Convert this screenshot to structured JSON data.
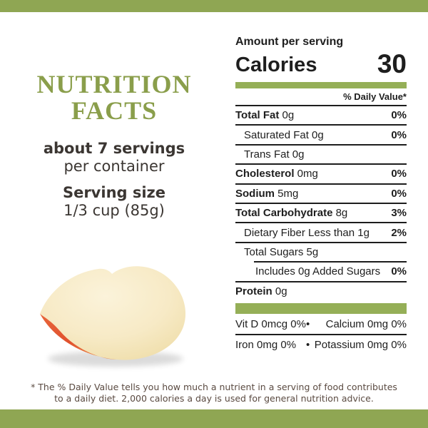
{
  "colors": {
    "page_bar_green": "#8fa653",
    "label_bar_green": "#95af57",
    "title_green": "#8a9e4b",
    "label_text": "#1e1e1e",
    "left_text": "#3b3632",
    "footnote_text": "#5a4a41"
  },
  "left_panel": {
    "title_line1": "NUTRITION",
    "title_line2": "FACTS",
    "servings_bold": "about 7 servings",
    "servings_sub": "per container",
    "serving_size_label": "Serving size",
    "serving_size_value": "1/3 cup (85g)",
    "image": "apple-slice"
  },
  "label": {
    "amount_per_serving": "Amount per serving",
    "calories_label": "Calories",
    "calories_value": "30",
    "daily_value_header": "% Daily Value*",
    "rows": [
      {
        "name": "Total Fat",
        "amount": "0g",
        "dv": "0%",
        "bold": true,
        "indent": 0
      },
      {
        "name": "Saturated Fat",
        "amount": "0g",
        "dv": "0%",
        "bold": false,
        "indent": 1
      },
      {
        "name": "Trans Fat",
        "amount": "0g",
        "dv": "",
        "bold": false,
        "indent": 1
      },
      {
        "name": "Cholesterol",
        "amount": "0mg",
        "dv": "0%",
        "bold": true,
        "indent": 0
      },
      {
        "name": "Sodium",
        "amount": "5mg",
        "dv": "0%",
        "bold": true,
        "indent": 0
      },
      {
        "name": "Total Carbohydrate",
        "amount": "8g",
        "dv": "3%",
        "bold": true,
        "indent": 0
      },
      {
        "name": "Dietary Fiber",
        "amount": "Less than 1g",
        "dv": "2%",
        "bold": false,
        "indent": 1
      },
      {
        "name": "Total Sugars",
        "amount": "5g",
        "dv": "",
        "bold": false,
        "indent": 1
      },
      {
        "name": "Includes 0g Added Sugars",
        "amount": "",
        "dv": "0%",
        "bold": false,
        "indent": 2,
        "rule_indent": true
      },
      {
        "name": "Protein",
        "amount": "0g",
        "dv": "",
        "bold": true,
        "indent": 0
      }
    ],
    "bullet": "•",
    "micronutrients": [
      {
        "left": "Vit D 0mcg 0%",
        "right": "Calcium 0mg 0%"
      },
      {
        "left": "Iron 0mg 0%",
        "right": "Potassium 0mg 0%"
      }
    ]
  },
  "footnote": {
    "line1": "* The % Daily Value tells you how much a nutrient in a serving of food contributes",
    "line2": "to a daily diet. 2,000 calories a day is used for general nutrition advice."
  }
}
